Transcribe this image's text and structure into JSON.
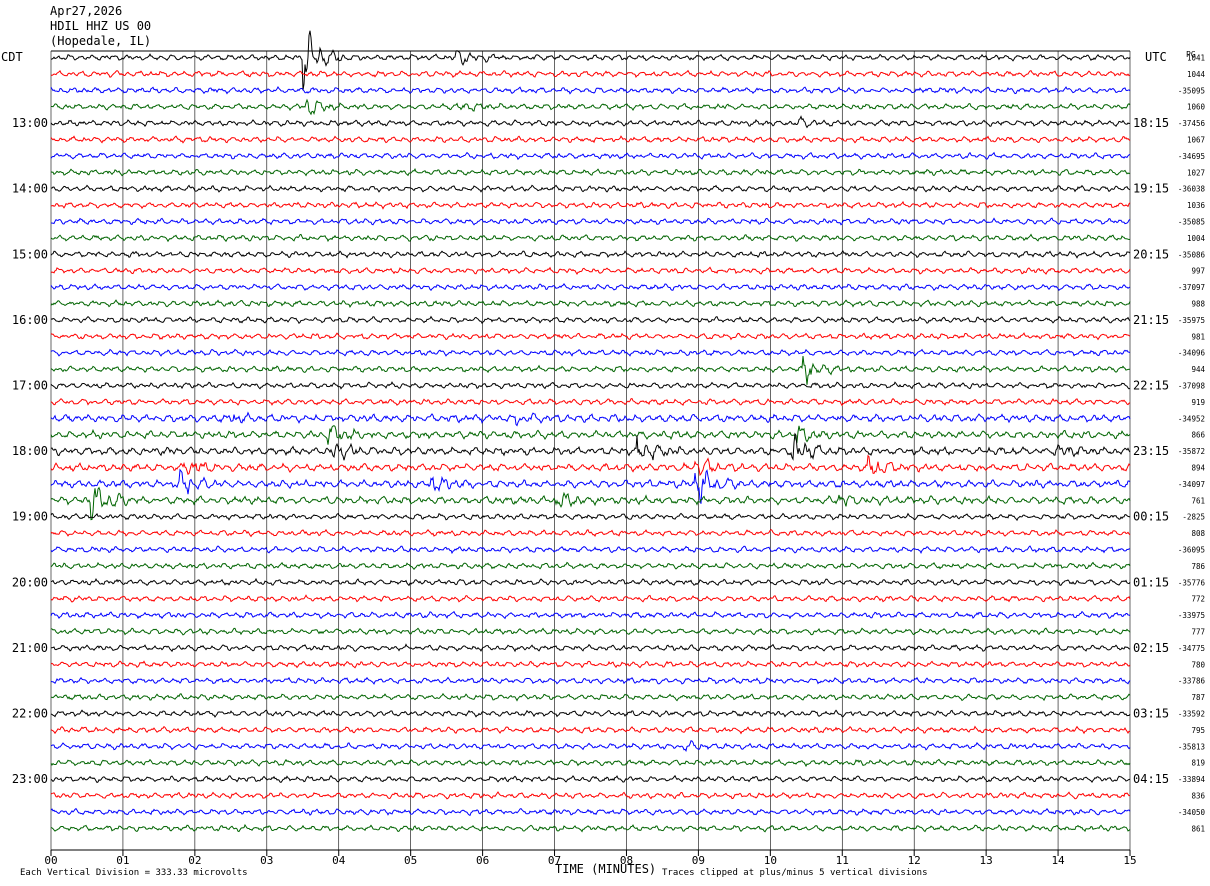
{
  "header": {
    "date": "Apr27,2026",
    "station": "HDIL HHZ US 00",
    "location": "(Hopedale, IL)"
  },
  "left_tz": "CDT",
  "right_tz": "UTC",
  "right_tz_suffix": "PG",
  "footer": {
    "xlabel": "TIME (MINUTES)",
    "scale_note": "Each Vertical Division =  333.33 microvolts",
    "clip_note": "Traces clipped at plus/minus 5 vertical divisions"
  },
  "colors": {
    "trace_cycle": [
      "#000000",
      "#ff0000",
      "#0000ff",
      "#006400"
    ],
    "grid": "#000000"
  },
  "chart_data": {
    "type": "line",
    "title": "HDIL HHZ US 00",
    "xlabel": "TIME (MINUTES)",
    "xlim": [
      0,
      15
    ],
    "x_ticks": [
      "00",
      "01",
      "02",
      "03",
      "04",
      "05",
      "06",
      "07",
      "08",
      "09",
      "10",
      "11",
      "12",
      "13",
      "14",
      "15"
    ],
    "row_count": 48,
    "left_hour_labels": [
      "13:00",
      "14:00",
      "15:00",
      "16:00",
      "17:00",
      "18:00",
      "19:00",
      "20:00",
      "21:00",
      "22:00",
      "23:00"
    ],
    "right_hour_labels": [
      "18:15",
      "19:15",
      "20:15",
      "21:15",
      "22:15",
      "23:15",
      "00:15",
      "01:15",
      "02:15",
      "03:15",
      "04:15"
    ],
    "row_values": [
      "1041",
      "1044",
      "-35095",
      "1060",
      "-37456",
      "1067",
      "-34695",
      "1027",
      "-36038",
      "1036",
      "-35085",
      "1004",
      "-35086",
      "997",
      "-37097",
      "988",
      "-35975",
      "981",
      "-34096",
      "944",
      "-37098",
      "919",
      "-34952",
      "866",
      "-35872",
      "894",
      "-34097",
      "761",
      "-2825",
      "808",
      "-36095",
      "786",
      "-35776",
      "772",
      "-33975",
      "777",
      "-34775",
      "780",
      "-33786",
      "787",
      "-33592",
      "795",
      "-35813",
      "819",
      "-33894",
      "836",
      "-34050",
      "861"
    ],
    "events": [
      {
        "row": 0,
        "minute": 3.55,
        "amp": 3.6
      },
      {
        "row": 0,
        "minute": 5.68,
        "amp": 0.9
      },
      {
        "row": 3,
        "minute": 3.6,
        "amp": 0.9
      },
      {
        "row": 3,
        "minute": 5.65,
        "amp": 0.6
      },
      {
        "row": 4,
        "minute": 10.45,
        "amp": 0.5
      },
      {
        "row": 19,
        "minute": 10.5,
        "amp": 1.7
      },
      {
        "row": 22,
        "minute": 2.5,
        "amp": 0.6
      },
      {
        "row": 22,
        "minute": 6.5,
        "amp": 0.6
      },
      {
        "row": 23,
        "minute": 3.9,
        "amp": 1.1
      },
      {
        "row": 23,
        "minute": 10.4,
        "amp": 0.9
      },
      {
        "row": 24,
        "minute": 3.95,
        "amp": 1.1
      },
      {
        "row": 24,
        "minute": 8.2,
        "amp": 1.6
      },
      {
        "row": 24,
        "minute": 10.35,
        "amp": 1.8
      },
      {
        "row": 24,
        "minute": 14.0,
        "amp": 0.7
      },
      {
        "row": 25,
        "minute": 1.9,
        "amp": 1.0
      },
      {
        "row": 25,
        "minute": 9.0,
        "amp": 1.1
      },
      {
        "row": 25,
        "minute": 11.4,
        "amp": 1.3
      },
      {
        "row": 26,
        "minute": 1.8,
        "amp": 1.6
      },
      {
        "row": 26,
        "minute": 9.0,
        "amp": 2.3
      },
      {
        "row": 26,
        "minute": 5.3,
        "amp": 0.9
      },
      {
        "row": 27,
        "minute": 0.6,
        "amp": 2.4
      },
      {
        "row": 27,
        "minute": 7.05,
        "amp": 0.9
      },
      {
        "row": 27,
        "minute": 11.0,
        "amp": 0.6
      },
      {
        "row": 42,
        "minute": 8.8,
        "amp": 0.5
      }
    ],
    "noisy_rows": [
      22,
      23,
      24,
      25,
      26,
      27
    ]
  }
}
